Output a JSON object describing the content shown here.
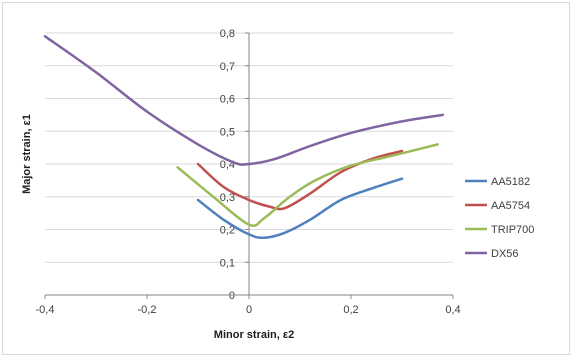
{
  "chart_data": {
    "type": "line",
    "xlabel": "Minor strain, ε2",
    "ylabel": "Major strain, ε1",
    "xlim": [
      -0.4,
      0.4
    ],
    "ylim": [
      0,
      0.8
    ],
    "x_ticks": [
      "-0,4",
      "-0,2",
      "0",
      "0,2",
      "0,4"
    ],
    "y_ticks": [
      "0",
      "0,1",
      "0,2",
      "0,3",
      "0,4",
      "0,5",
      "0,6",
      "0,7",
      "0,8"
    ],
    "grid": "horizontal",
    "legend_position": "right",
    "series": [
      {
        "name": "AA5182",
        "color": "#4f81bd",
        "points": [
          [
            -0.1,
            0.29
          ],
          [
            -0.05,
            0.23
          ],
          [
            0.0,
            0.185
          ],
          [
            0.03,
            0.175
          ],
          [
            0.07,
            0.19
          ],
          [
            0.12,
            0.23
          ],
          [
            0.18,
            0.29
          ],
          [
            0.24,
            0.325
          ],
          [
            0.3,
            0.355
          ]
        ]
      },
      {
        "name": "AA5754",
        "color": "#c0504d",
        "points": [
          [
            -0.1,
            0.4
          ],
          [
            -0.05,
            0.33
          ],
          [
            0.0,
            0.29
          ],
          [
            0.04,
            0.27
          ],
          [
            0.07,
            0.265
          ],
          [
            0.12,
            0.31
          ],
          [
            0.18,
            0.375
          ],
          [
            0.24,
            0.415
          ],
          [
            0.3,
            0.44
          ]
        ]
      },
      {
        "name": "TRIP700",
        "color": "#9bbb59",
        "points": [
          [
            -0.14,
            0.39
          ],
          [
            -0.07,
            0.3
          ],
          [
            0.0,
            0.215
          ],
          [
            0.03,
            0.235
          ],
          [
            0.08,
            0.3
          ],
          [
            0.13,
            0.35
          ],
          [
            0.2,
            0.395
          ],
          [
            0.28,
            0.425
          ],
          [
            0.37,
            0.46
          ]
        ]
      },
      {
        "name": "DX56",
        "color": "#8064a2",
        "points": [
          [
            -0.4,
            0.79
          ],
          [
            -0.3,
            0.68
          ],
          [
            -0.2,
            0.56
          ],
          [
            -0.1,
            0.46
          ],
          [
            -0.03,
            0.405
          ],
          [
            0.0,
            0.4
          ],
          [
            0.05,
            0.415
          ],
          [
            0.12,
            0.455
          ],
          [
            0.2,
            0.495
          ],
          [
            0.3,
            0.53
          ],
          [
            0.38,
            0.55
          ]
        ]
      }
    ]
  }
}
